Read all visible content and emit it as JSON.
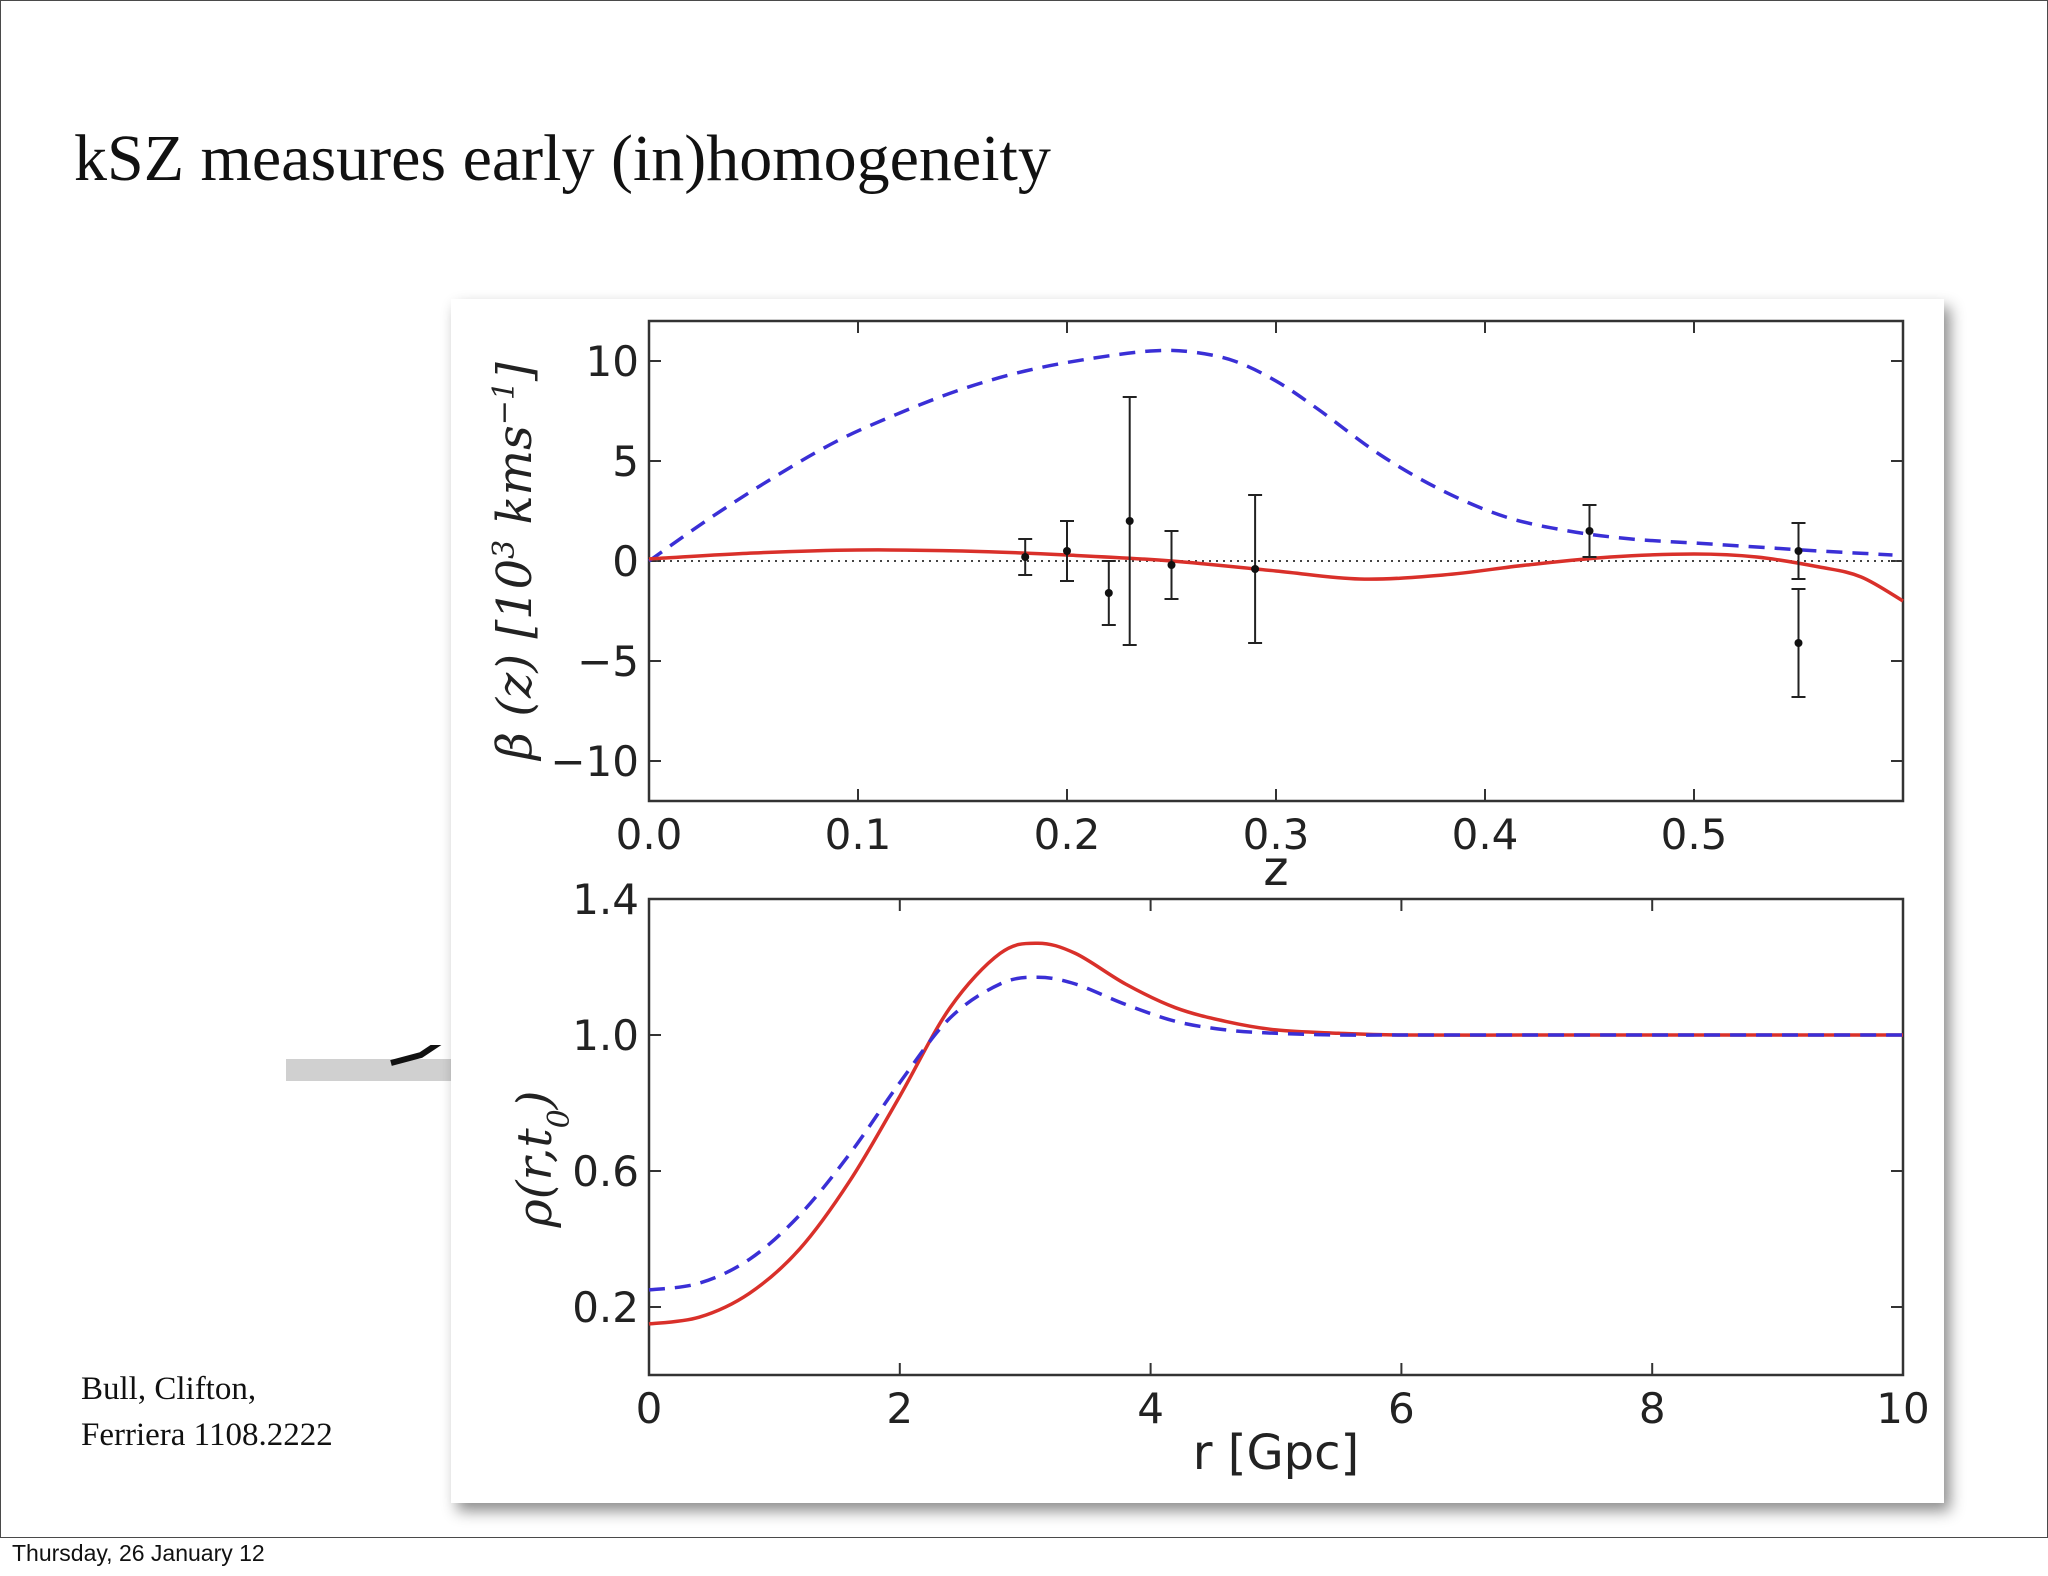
{
  "slide": {
    "title": "kSZ measures early (in)homogeneity",
    "citation_line1": "Bull, Clifton,",
    "citation_line2": "Ferriera 1108.2222",
    "footer_date": "Thursday, 26 January 12"
  },
  "chart_data": [
    {
      "type": "line",
      "xlabel": "z",
      "ylabel_parts": [
        "β (z) [10",
        "3",
        " kms",
        "−1",
        "]"
      ],
      "xlim": [
        0.0,
        0.6
      ],
      "ylim": [
        -12,
        12
      ],
      "xticks": [
        0.0,
        0.1,
        0.2,
        0.3,
        0.4,
        0.5
      ],
      "xtick_labels": [
        "0.0",
        "0.1",
        "0.2",
        "0.3",
        "0.4",
        "0.5"
      ],
      "yticks": [
        10,
        5,
        0,
        -5,
        -10
      ],
      "ytick_labels": [
        "10",
        "5",
        "0",
        "−5",
        "−10"
      ],
      "reference_line": 0,
      "series": [
        {
          "style": "dashed",
          "color": "#3a2fd6",
          "x": [
            0.0,
            0.03,
            0.06,
            0.09,
            0.12,
            0.15,
            0.18,
            0.21,
            0.24,
            0.26,
            0.28,
            0.3,
            0.32,
            0.35,
            0.38,
            0.41,
            0.44,
            0.47,
            0.5,
            0.53,
            0.56,
            0.595
          ],
          "y": [
            0.0,
            2.2,
            4.2,
            6.0,
            7.4,
            8.6,
            9.5,
            10.1,
            10.5,
            10.45,
            10.0,
            9.0,
            7.6,
            5.3,
            3.5,
            2.2,
            1.5,
            1.1,
            0.9,
            0.7,
            0.5,
            0.3
          ]
        },
        {
          "style": "solid",
          "color": "#d9302a",
          "x": [
            0.0,
            0.05,
            0.1,
            0.15,
            0.2,
            0.25,
            0.3,
            0.34,
            0.38,
            0.42,
            0.46,
            0.5,
            0.53,
            0.56,
            0.58,
            0.6
          ],
          "y": [
            0.1,
            0.4,
            0.55,
            0.5,
            0.3,
            0.0,
            -0.5,
            -0.9,
            -0.7,
            -0.2,
            0.2,
            0.35,
            0.2,
            -0.3,
            -0.8,
            -2.0
          ]
        }
      ],
      "error_points": [
        {
          "x": 0.18,
          "y": 0.2,
          "err": 0.9
        },
        {
          "x": 0.2,
          "y": 0.5,
          "err": 1.5
        },
        {
          "x": 0.22,
          "y": -1.6,
          "err": 1.6
        },
        {
          "x": 0.23,
          "y": 2.0,
          "err": 6.2
        },
        {
          "x": 0.25,
          "y": -0.2,
          "err": 1.7
        },
        {
          "x": 0.29,
          "y": -0.4,
          "err": 3.7
        },
        {
          "x": 0.45,
          "y": 1.5,
          "err": 1.3
        },
        {
          "x": 0.55,
          "y": 0.5,
          "err": 1.4
        },
        {
          "x": 0.55,
          "y": -4.1,
          "err": 2.7
        }
      ]
    },
    {
      "type": "line",
      "xlabel": "r [Gpc]",
      "ylabel_parts": [
        "ρ(r,t",
        "0",
        ")"
      ],
      "xlim": [
        0,
        10
      ],
      "ylim": [
        0.0,
        1.4
      ],
      "xticks": [
        0,
        2,
        4,
        6,
        8,
        10
      ],
      "xtick_labels": [
        "0",
        "2",
        "4",
        "6",
        "8",
        "10"
      ],
      "yticks": [
        1.4,
        1.0,
        0.6,
        0.2
      ],
      "ytick_labels": [
        "1.4",
        "1.0",
        "0.6",
        "0.2"
      ],
      "series": [
        {
          "style": "solid",
          "color": "#d9302a",
          "x": [
            0,
            0.4,
            0.8,
            1.2,
            1.6,
            2.0,
            2.4,
            2.8,
            3.1,
            3.4,
            3.8,
            4.2,
            4.6,
            5.0,
            5.5,
            6,
            7,
            8,
            9,
            10
          ],
          "y": [
            0.15,
            0.17,
            0.24,
            0.37,
            0.57,
            0.82,
            1.08,
            1.24,
            1.27,
            1.24,
            1.15,
            1.08,
            1.04,
            1.015,
            1.005,
            1.0,
            1.0,
            1.0,
            1.0,
            1.0
          ]
        },
        {
          "style": "dashed",
          "color": "#3a2fd6",
          "x": [
            0,
            0.4,
            0.8,
            1.2,
            1.6,
            2.0,
            2.4,
            2.8,
            3.1,
            3.4,
            3.8,
            4.2,
            4.6,
            5.0,
            5.5,
            6,
            7,
            8,
            9,
            10
          ],
          "y": [
            0.25,
            0.27,
            0.34,
            0.47,
            0.65,
            0.86,
            1.05,
            1.15,
            1.17,
            1.15,
            1.09,
            1.04,
            1.015,
            1.005,
            1.0,
            1.0,
            1.0,
            1.0,
            1.0,
            1.0
          ]
        }
      ]
    }
  ]
}
